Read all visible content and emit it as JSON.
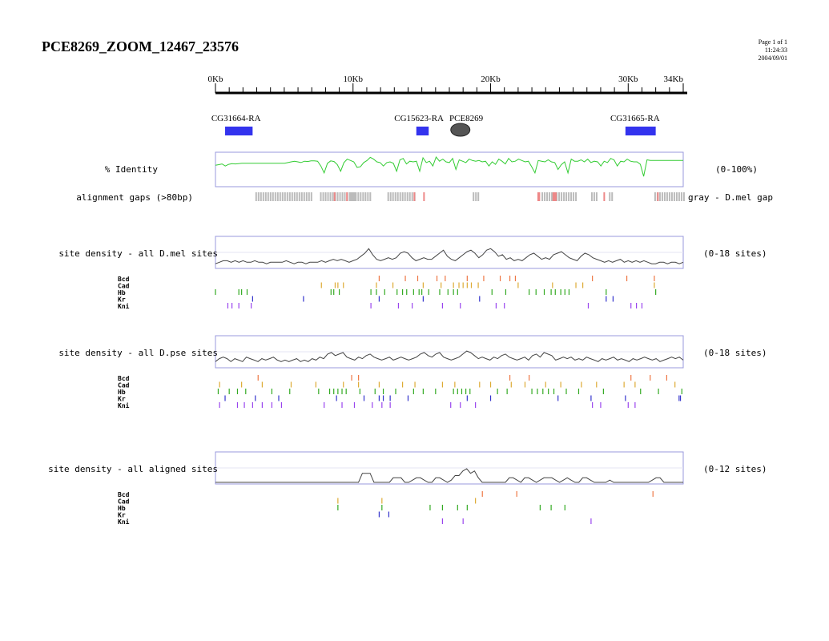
{
  "title": "PCE8269_ZOOM_12467_23576",
  "page_info": [
    "Page 1 of 1",
    "11:24:33",
    "2004/09/01"
  ],
  "ruler": {
    "min_kb": 0,
    "max_kb": 34,
    "labels": [
      {
        "kb": 0,
        "text": "0Kb"
      },
      {
        "kb": 10,
        "text": "10Kb"
      },
      {
        "kb": 20,
        "text": "20Kb"
      },
      {
        "kb": 30,
        "text": "30Kb"
      },
      {
        "kb": 34,
        "text": "34Kb"
      }
    ]
  },
  "genes": [
    {
      "label": "CG31664-RA",
      "label_kb": -0.3,
      "blocks": [
        [
          0.7,
          2.7
        ]
      ]
    },
    {
      "label": "CG15623-RA",
      "label_kb": 13.0,
      "blocks": [
        [
          14.6,
          15.5
        ]
      ]
    },
    {
      "label": "CG31665-RA",
      "label_kb": 28.7,
      "blocks": [
        [
          29.8,
          32.0
        ]
      ]
    }
  ],
  "feature": {
    "label": "PCE8269",
    "label_kb": 17.0,
    "center_kb": 17.8
  },
  "colors": {
    "identity": "#33cc33",
    "density": "#444444",
    "frame": "#9999dd",
    "gene": "#3333ee",
    "gap_gray": "#bbbbbb",
    "gap_red": "#ee8888",
    "Bcd": "#ee7744",
    "Cad": "#ddaa33",
    "Hb": "#33aa22",
    "Kr": "#3333cc",
    "Kni": "#9944ee"
  },
  "identity": {
    "label": "% Identity",
    "range": "(0-100%)",
    "values": [
      62,
      64,
      66,
      60,
      65,
      67,
      66,
      67,
      68,
      68,
      68,
      68,
      68,
      68,
      68,
      68,
      68,
      68,
      68,
      68,
      68,
      68,
      70,
      72,
      74,
      72,
      70,
      74,
      73,
      75,
      75,
      74,
      60,
      40,
      68,
      75,
      73,
      64,
      45,
      70,
      80,
      76,
      72,
      56,
      58,
      70,
      76,
      85,
      80,
      72,
      70,
      60,
      70,
      72,
      68,
      45,
      78,
      82,
      66,
      74,
      72,
      74,
      45,
      84,
      70,
      74,
      60,
      86,
      74,
      80,
      72,
      70,
      82,
      50,
      78,
      74,
      70,
      80,
      76,
      74,
      76,
      72,
      74,
      60,
      72,
      65,
      80,
      74,
      66,
      82,
      72,
      74,
      80,
      76,
      72,
      74,
      58,
      40,
      76,
      74,
      72,
      78,
      72,
      70,
      50,
      64,
      72,
      40,
      80,
      74,
      74,
      78,
      72,
      80,
      70,
      74,
      72,
      60,
      74,
      70,
      82,
      78,
      60,
      74,
      72,
      80,
      74,
      72,
      72,
      65,
      30,
      78,
      76,
      76,
      76,
      76,
      76,
      76,
      76,
      76,
      76,
      76,
      76
    ]
  },
  "gaps": {
    "label": "alignment gaps (>80bp)",
    "legend": "gray - D.mel gap",
    "gray": [
      [
        2.9,
        7.0
      ],
      [
        7.6,
        10.2
      ],
      [
        9.8,
        11.2
      ],
      [
        12.5,
        14.5
      ],
      [
        18.7,
        19.2
      ],
      [
        23.7,
        26.2
      ],
      [
        27.3,
        27.7
      ],
      [
        28.6,
        28.9
      ],
      [
        31.9,
        34.0
      ]
    ],
    "red": [
      [
        8.6,
        8.7
      ],
      [
        9.5,
        9.6
      ],
      [
        14.4,
        14.5
      ],
      [
        15.1,
        15.2
      ],
      [
        23.4,
        23.6
      ],
      [
        24.5,
        24.8
      ],
      [
        28.2,
        28.3
      ],
      [
        32.1,
        32.2
      ]
    ]
  },
  "tracks": [
    {
      "label": "site density - all D.mel sites",
      "range": "(0-18 sites)",
      "max": 18,
      "values": [
        2,
        3,
        4,
        4,
        3,
        4,
        3,
        4,
        3,
        3,
        4,
        3,
        3,
        2,
        3,
        3,
        3,
        3,
        4,
        3,
        2,
        3,
        3,
        2,
        3,
        3,
        3,
        4,
        3,
        4,
        5,
        4,
        5,
        4,
        3,
        4,
        5,
        7,
        9,
        12,
        8,
        5,
        4,
        5,
        6,
        5,
        6,
        9,
        10,
        9,
        6,
        4,
        5,
        6,
        5,
        5,
        7,
        9,
        11,
        7,
        5,
        4,
        6,
        8,
        10,
        11,
        9,
        6,
        8,
        11,
        12,
        10,
        7,
        8,
        5,
        6,
        4,
        5,
        4,
        6,
        8,
        9,
        7,
        5,
        6,
        5,
        8,
        9,
        10,
        8,
        6,
        5,
        4,
        7,
        9,
        8,
        6,
        5,
        4,
        3,
        4,
        3,
        4,
        5,
        3,
        4,
        3,
        4,
        3,
        4,
        3,
        2,
        2,
        3,
        3,
        2,
        3,
        3,
        2,
        3
      ],
      "sites": {
        "Bcd": [
          11.9,
          13.8,
          14.7,
          16.1,
          16.7,
          18.3,
          19.5,
          20.7,
          21.4,
          21.8,
          27.4,
          29.9,
          31.9
        ],
        "Cad": [
          7.7,
          8.7,
          8.9,
          9.3,
          11.7,
          12.9,
          15.1,
          16.4,
          17.3,
          17.7,
          18.0,
          18.3,
          18.6,
          19.1,
          22.0,
          24.5,
          26.2,
          26.7,
          31.9
        ],
        "Hb": [
          0.0,
          1.7,
          1.9,
          2.3,
          8.4,
          8.6,
          9.0,
          11.3,
          11.7,
          12.3,
          13.2,
          13.6,
          13.9,
          14.4,
          14.8,
          15.0,
          15.5,
          16.3,
          16.9,
          17.3,
          17.6,
          20.1,
          21.1,
          22.8,
          23.3,
          23.9,
          24.4,
          24.7,
          25.1,
          25.4,
          25.7,
          28.4,
          32.0
        ],
        "Kr": [
          2.7,
          6.4,
          11.9,
          15.1,
          19.2,
          28.4,
          28.9
        ],
        "Kni": [
          0.9,
          1.2,
          1.7,
          2.6,
          11.3,
          13.3,
          14.3,
          16.5,
          17.8,
          20.4,
          21.0,
          27.1,
          30.2,
          30.6,
          31.0
        ]
      }
    },
    {
      "label": "site density - all D.pse sites",
      "range": "(0-18 sites)",
      "max": 18,
      "values": [
        3,
        5,
        6,
        5,
        3,
        5,
        4,
        3,
        6,
        5,
        4,
        3,
        5,
        4,
        5,
        6,
        4,
        3,
        4,
        3,
        4,
        5,
        3,
        4,
        3,
        5,
        4,
        6,
        5,
        8,
        9,
        7,
        8,
        9,
        6,
        5,
        4,
        6,
        5,
        7,
        8,
        6,
        5,
        4,
        5,
        6,
        4,
        5,
        6,
        5,
        4,
        5,
        6,
        8,
        9,
        7,
        6,
        8,
        9,
        6,
        5,
        4,
        5,
        6,
        8,
        10,
        9,
        7,
        5,
        6,
        5,
        4,
        6,
        5,
        7,
        8,
        6,
        5,
        4,
        5,
        6,
        4,
        7,
        8,
        6,
        9,
        8,
        7,
        4,
        5,
        6,
        5,
        6,
        4,
        5,
        4,
        6,
        5,
        4,
        3,
        5,
        4,
        5,
        6,
        4,
        5,
        4,
        3,
        5,
        4,
        5,
        6,
        5,
        4,
        5,
        3,
        4,
        5,
        6,
        5,
        6,
        4
      ],
      "sites": {
        "Bcd": [
          3.1,
          9.9,
          10.4,
          21.4,
          22.8,
          30.2,
          31.6,
          32.8
        ],
        "Cad": [
          0.3,
          1.9,
          3.4,
          5.5,
          7.3,
          9.3,
          10.4,
          11.9,
          13.6,
          14.5,
          16.5,
          17.4,
          19.2,
          20.0,
          21.5,
          22.5,
          24.0,
          25.1,
          26.6,
          27.7,
          29.7,
          30.5,
          33.4
        ],
        "Hb": [
          0.2,
          1.0,
          1.6,
          2.2,
          4.1,
          5.4,
          7.5,
          8.3,
          8.6,
          8.9,
          9.2,
          9.5,
          10.5,
          11.6,
          12.2,
          13.1,
          14.4,
          15.1,
          16.0,
          17.3,
          17.6,
          17.9,
          18.2,
          18.5,
          20.5,
          21.2,
          23.0,
          23.4,
          23.8,
          24.2,
          24.6,
          25.5,
          26.4,
          28.2,
          30.9,
          32.2,
          33.9
        ],
        "Kr": [
          0.7,
          2.9,
          4.6,
          8.8,
          10.8,
          11.9,
          12.2,
          12.7,
          14.0,
          18.3,
          20.0,
          24.9,
          27.3,
          29.8,
          33.7,
          33.8
        ],
        "Kni": [
          0.3,
          1.6,
          2.1,
          2.7,
          3.4,
          4.1,
          4.8,
          7.9,
          9.2,
          10.1,
          11.4,
          12.1,
          12.7,
          17.1,
          17.8,
          18.9,
          27.4,
          28.0,
          30.0,
          30.5
        ]
      }
    },
    {
      "label": "site density - all aligned sites",
      "range": "(0-12 sites)",
      "max": 12,
      "values": [
        0,
        0,
        0,
        0,
        0,
        0,
        0,
        0,
        0,
        0,
        0,
        0,
        0,
        0,
        0,
        0,
        0,
        0,
        0,
        0,
        0,
        0,
        0,
        0,
        0,
        0,
        0,
        0,
        0,
        0,
        0,
        0,
        0,
        0,
        0,
        0,
        0,
        0,
        4,
        4,
        4,
        0,
        0,
        0,
        0,
        0,
        2,
        2,
        2,
        0,
        0,
        1,
        2,
        2,
        1,
        0,
        0,
        2,
        2,
        1,
        0,
        1,
        3,
        3,
        5,
        6,
        4,
        5,
        2,
        0,
        0,
        0,
        0,
        0,
        0,
        0,
        2,
        2,
        1,
        0,
        2,
        2,
        1,
        0,
        1,
        2,
        2,
        2,
        1,
        0,
        1,
        2,
        1,
        0,
        0,
        2,
        2,
        1,
        0,
        0,
        0,
        0,
        1,
        0,
        0,
        0,
        0,
        0,
        0,
        0,
        0,
        0,
        0,
        1,
        2,
        2,
        0,
        0,
        0,
        0,
        0,
        0
      ],
      "sites": {
        "Bcd": [
          19.4,
          21.9,
          31.8
        ],
        "Cad": [
          8.9,
          12.1,
          18.9
        ],
        "Hb": [
          8.9,
          12.1,
          15.6,
          16.5,
          17.6,
          18.3,
          23.6,
          24.4,
          25.4
        ],
        "Kr": [
          11.9,
          12.6
        ],
        "Kni": [
          16.5,
          18.0,
          27.3
        ]
      }
    }
  ],
  "factor_names": [
    "Bcd",
    "Cad",
    "Hb",
    "Kr",
    "Kni"
  ]
}
